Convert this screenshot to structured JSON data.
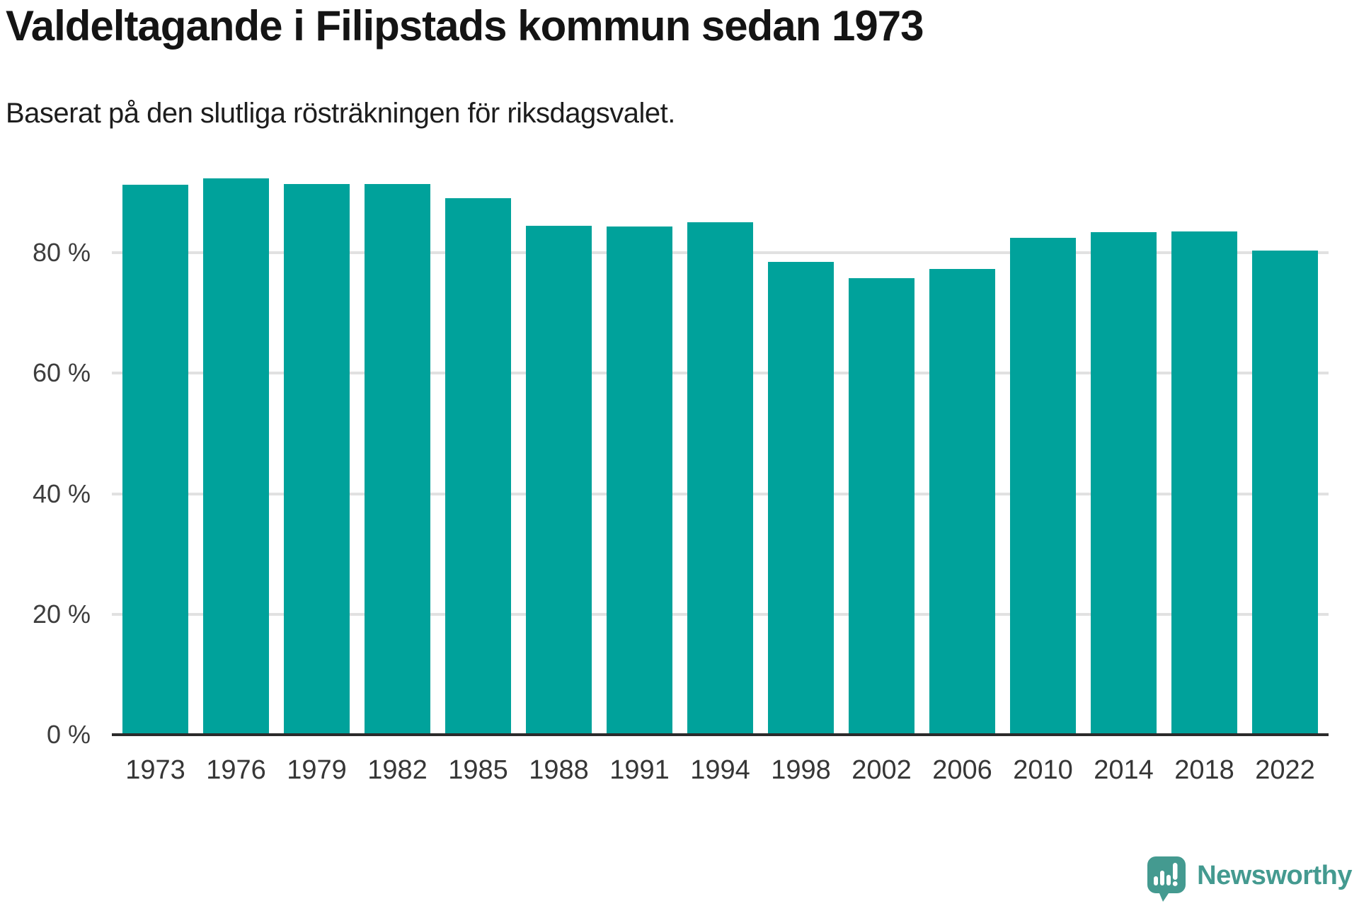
{
  "header": {
    "title": "Valdeltagande i Filipstads kommun sedan 1973",
    "subtitle": "Baserat på den slutliga rösträkningen för riksdagsvalet."
  },
  "chart_data": {
    "type": "bar",
    "title": "Valdeltagande i Filipstads kommun sedan 1973",
    "subtitle": "Baserat på den slutliga rösträkningen för riksdagsvalet.",
    "categories": [
      "1973",
      "1976",
      "1979",
      "1982",
      "1985",
      "1988",
      "1991",
      "1994",
      "1998",
      "2002",
      "2006",
      "2010",
      "2014",
      "2018",
      "2022"
    ],
    "values": [
      91.3,
      92.4,
      91.4,
      91.4,
      89.1,
      84.5,
      84.4,
      85.1,
      78.5,
      75.8,
      77.3,
      82.5,
      83.4,
      83.6,
      80.4
    ],
    "unit": "%",
    "xlabel": "",
    "ylabel": "",
    "ylim": [
      0,
      100
    ],
    "yticks": [
      0,
      20,
      40,
      60,
      80
    ],
    "ytick_labels": [
      "0 %",
      "20 %",
      "40 %",
      "60 %",
      "80 %"
    ],
    "grid": "horizontal",
    "legend": "none",
    "bar_color": "#00a29b",
    "grid_color": "#e1e1e1",
    "axis_color": "#2b2b2b",
    "tick_label_color": "#3d3d3d"
  },
  "branding": {
    "logo_text": "Newsworthy",
    "logo_color": "#449a90",
    "logo_icon": "newsworthy-speech-bubble-bar-chart-icon"
  }
}
